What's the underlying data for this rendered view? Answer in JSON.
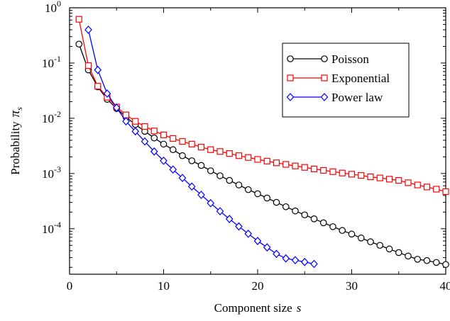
{
  "chart_data": {
    "type": "line",
    "xlabel": "Component size",
    "xlabel_symbol": "s",
    "ylabel": "Probability",
    "ylabel_symbol": "π",
    "ylabel_subscript": "s",
    "xlim": [
      0,
      40
    ],
    "ylim": [
      1.5e-05,
      1
    ],
    "yscale": "log",
    "x_ticks": [
      0,
      10,
      20,
      30,
      40
    ],
    "y_ticks": [
      {
        "exp": "0",
        "value": 1
      },
      {
        "exp": "-1",
        "value": 0.1
      },
      {
        "exp": "-2",
        "value": 0.01
      },
      {
        "exp": "-3",
        "value": 0.001
      },
      {
        "exp": "-4",
        "value": 0.0001
      }
    ],
    "y_tick_base": "10",
    "legend_position": "top-right",
    "series": [
      {
        "name": "Poisson",
        "color": "#000000",
        "marker": "circle",
        "x": [
          1,
          2,
          3,
          4,
          5,
          6,
          7,
          8,
          9,
          10,
          11,
          12,
          13,
          14,
          15,
          16,
          17,
          18,
          19,
          20,
          21,
          22,
          23,
          24,
          25,
          26,
          27,
          28,
          29,
          30,
          31,
          32,
          33,
          34,
          35,
          36,
          37,
          38,
          39,
          40
        ],
        "y": [
          0.22,
          0.075,
          0.037,
          0.022,
          0.015,
          0.0105,
          0.0077,
          0.0058,
          0.0044,
          0.0034,
          0.0027,
          0.0021,
          0.0017,
          0.0014,
          0.00112,
          0.00091,
          0.00075,
          0.00062,
          0.00051,
          0.00043,
          0.00036,
          0.0003,
          0.00025,
          0.00021,
          0.000178,
          0.000151,
          0.000128,
          0.000109,
          9.3e-05,
          8e-05,
          6.8e-05,
          5.8e-05,
          5e-05,
          4.3e-05,
          3.7e-05,
          3.2e-05,
          2.8e-05,
          2.65e-05,
          2.45e-05,
          2.25e-05
        ]
      },
      {
        "name": "Exponential",
        "color": "#ff0000",
        "marker": "square",
        "x": [
          1,
          2,
          3,
          4,
          5,
          6,
          7,
          8,
          9,
          10,
          11,
          12,
          13,
          14,
          15,
          16,
          17,
          18,
          19,
          20,
          21,
          22,
          23,
          24,
          25,
          26,
          27,
          28,
          29,
          30,
          31,
          32,
          33,
          34,
          35,
          36,
          37,
          38,
          39,
          40
        ],
        "y": [
          0.62,
          0.09,
          0.038,
          0.024,
          0.016,
          0.0115,
          0.0088,
          0.0071,
          0.0059,
          0.005,
          0.0043,
          0.0038,
          0.0034,
          0.003,
          0.0027,
          0.0025,
          0.0023,
          0.0021,
          0.00195,
          0.0018,
          0.00167,
          0.00156,
          0.00146,
          0.00137,
          0.00129,
          0.00121,
          0.00114,
          0.00108,
          0.00102,
          0.00097,
          0.00092,
          0.00087,
          0.00083,
          0.00079,
          0.00075,
          0.00068,
          0.00062,
          0.00057,
          0.00052,
          0.00047
        ]
      },
      {
        "name": "Power law",
        "color": "#0000ff",
        "marker": "diamond",
        "x": [
          2,
          3,
          4,
          5,
          6,
          7,
          8,
          9,
          10,
          11,
          12,
          13,
          14,
          15,
          16,
          17,
          18,
          19,
          20,
          21,
          22,
          23,
          24,
          25,
          26
        ],
        "y": [
          0.4,
          0.075,
          0.028,
          0.0155,
          0.0088,
          0.0058,
          0.0038,
          0.0025,
          0.0017,
          0.00118,
          0.00083,
          0.00058,
          0.00041,
          0.00029,
          0.000207,
          0.00015,
          0.00011,
          8.1e-05,
          6e-05,
          4.6e-05,
          3.5e-05,
          2.9e-05,
          2.7e-05,
          2.5e-05,
          2.3e-05
        ]
      }
    ]
  }
}
